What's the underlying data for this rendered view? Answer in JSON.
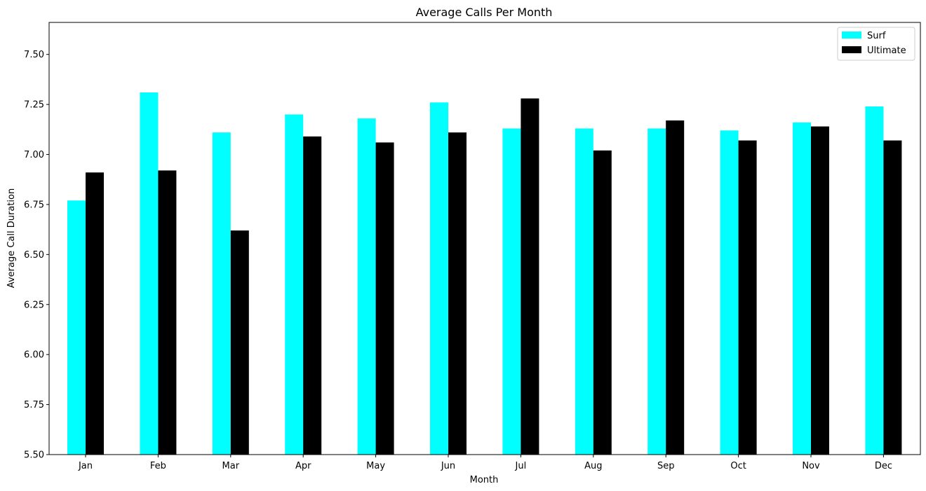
{
  "chart_data": {
    "type": "bar",
    "title": "Average Calls Per Month",
    "xlabel": "Month",
    "ylabel": "Average Call Duration",
    "categories": [
      "Jan",
      "Feb",
      "Mar",
      "Apr",
      "May",
      "Jun",
      "Jul",
      "Aug",
      "Sep",
      "Oct",
      "Nov",
      "Dec"
    ],
    "series": [
      {
        "name": "Surf",
        "color": "#00ffff",
        "values": [
          6.77,
          7.31,
          7.11,
          7.2,
          7.18,
          7.26,
          7.13,
          7.13,
          7.13,
          7.12,
          7.16,
          7.24
        ]
      },
      {
        "name": "Ultimate",
        "color": "#000000",
        "values": [
          6.91,
          6.92,
          6.62,
          7.09,
          7.06,
          7.11,
          7.28,
          7.02,
          7.17,
          7.07,
          7.14,
          7.07
        ]
      }
    ],
    "ylim": [
      5.5,
      7.66
    ],
    "yticks": [
      "5.50",
      "5.75",
      "6.00",
      "6.25",
      "6.50",
      "6.75",
      "7.00",
      "7.25",
      "7.50"
    ],
    "grid": false,
    "legend_position": "top-right"
  }
}
